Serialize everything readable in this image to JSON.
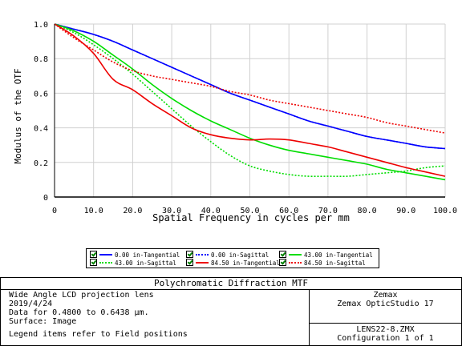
{
  "chart_data": {
    "type": "line",
    "xlabel": "Spatial Frequency in cycles per mm",
    "ylabel": "Modulus of the OTF",
    "xlim": [
      0,
      100
    ],
    "ylim": [
      0,
      1
    ],
    "x_ticks": [
      "0",
      "10.0",
      "20.0",
      "30.0",
      "40.0",
      "50.0",
      "60.0",
      "70.0",
      "80.0",
      "90.0",
      "100.0"
    ],
    "y_ticks": [
      "0",
      "0.2",
      "0.4",
      "0.6",
      "0.8",
      "1.0"
    ],
    "grid": true,
    "x": [
      0,
      5,
      10,
      15,
      20,
      25,
      30,
      35,
      40,
      45,
      50,
      55,
      60,
      65,
      70,
      75,
      80,
      85,
      90,
      95,
      100
    ],
    "series": [
      {
        "name": "0.00 in-Tangential",
        "color": "#0000ff",
        "dash": "solid",
        "values": [
          1.0,
          0.97,
          0.94,
          0.9,
          0.85,
          0.8,
          0.75,
          0.7,
          0.65,
          0.6,
          0.56,
          0.52,
          0.48,
          0.44,
          0.41,
          0.38,
          0.35,
          0.33,
          0.31,
          0.29,
          0.28
        ]
      },
      {
        "name": "0.00 in-Sagittal",
        "color": "#0000ff",
        "dash": "dotted",
        "values": [
          1.0,
          0.97,
          0.94,
          0.9,
          0.85,
          0.8,
          0.75,
          0.7,
          0.65,
          0.6,
          0.56,
          0.52,
          0.48,
          0.44,
          0.41,
          0.38,
          0.35,
          0.33,
          0.31,
          0.29,
          0.28
        ]
      },
      {
        "name": "43.00 in-Tangential",
        "color": "#00dd00",
        "dash": "solid",
        "values": [
          1.0,
          0.96,
          0.9,
          0.82,
          0.74,
          0.65,
          0.57,
          0.5,
          0.44,
          0.39,
          0.34,
          0.3,
          0.27,
          0.25,
          0.23,
          0.21,
          0.19,
          0.16,
          0.14,
          0.12,
          0.1
        ]
      },
      {
        "name": "43.00 in-Sagittal",
        "color": "#00dd00",
        "dash": "dotted",
        "values": [
          1.0,
          0.95,
          0.88,
          0.8,
          0.71,
          0.61,
          0.51,
          0.41,
          0.32,
          0.24,
          0.18,
          0.15,
          0.13,
          0.12,
          0.12,
          0.12,
          0.13,
          0.14,
          0.15,
          0.17,
          0.18
        ]
      },
      {
        "name": "84.50 in-Tangential",
        "color": "#ee0000",
        "dash": "solid",
        "values": [
          1.0,
          0.93,
          0.83,
          0.68,
          0.62,
          0.54,
          0.47,
          0.4,
          0.36,
          0.34,
          0.33,
          0.335,
          0.33,
          0.31,
          0.29,
          0.26,
          0.23,
          0.2,
          0.17,
          0.145,
          0.12
        ]
      },
      {
        "name": "84.50 in-Sagittal",
        "color": "#ee0000",
        "dash": "dotted",
        "values": [
          1.0,
          0.92,
          0.85,
          0.78,
          0.73,
          0.7,
          0.68,
          0.66,
          0.64,
          0.61,
          0.59,
          0.56,
          0.54,
          0.52,
          0.5,
          0.48,
          0.46,
          0.43,
          0.41,
          0.39,
          0.37
        ]
      }
    ]
  },
  "legend": {
    "items": [
      {
        "label": "0.00 in-Tangential",
        "color": "#0000ff",
        "style": "solid"
      },
      {
        "label": "0.00 in-Sagittal",
        "color": "#0000ff",
        "style": "dotted"
      },
      {
        "label": "43.00 in-Tangential",
        "color": "#00dd00",
        "style": "solid"
      },
      {
        "label": "43.00 in-Sagittal",
        "color": "#00dd00",
        "style": "dotted"
      },
      {
        "label": "84.50 in-Tangential",
        "color": "#ee0000",
        "style": "solid"
      },
      {
        "label": "84.50 in-Sagittal",
        "color": "#ee0000",
        "style": "dotted"
      }
    ]
  },
  "info": {
    "title": "Polychromatic Diffraction MTF",
    "left_lines": [
      "Wide Angle LCD projection lens",
      "2019/4/24",
      "Data for 0.4800 to 0.6438 μm.",
      "Surface: Image",
      "Legend items refer to Field positions"
    ],
    "right_top": [
      "Zemax",
      "Zemax OpticStudio 17"
    ],
    "right_bottom": [
      "LENS22-8.ZMX",
      "Configuration 1 of 1"
    ]
  }
}
